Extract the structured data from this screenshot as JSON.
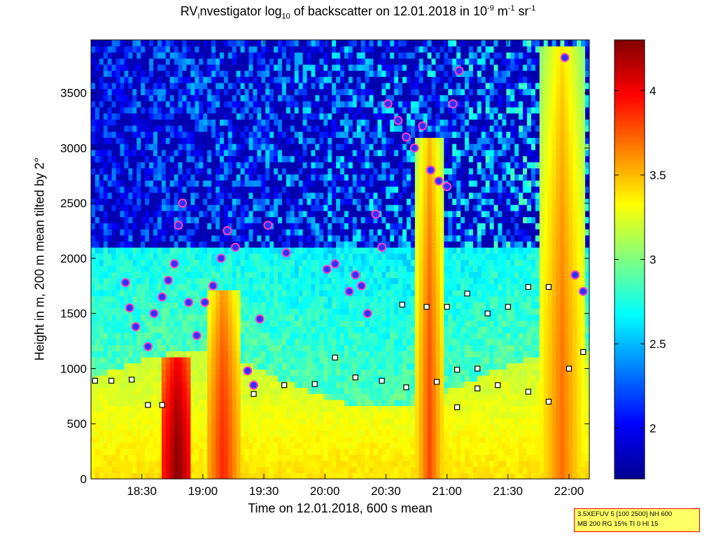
{
  "chart_data": {
    "type": "heatmap",
    "title": {
      "pre": "RV",
      "sub1": "I",
      "mid": "nvestigator log",
      "sub2": "10",
      "mid2": " of backscatter on 12.01.2018 in 10",
      "sup1": "-9",
      "mid3": " m",
      "sup2": "-1",
      "mid4": " sr",
      "sup3": "-1"
    },
    "xlabel": "Time on 12.01.2018, 600 s mean",
    "ylabel": "Height in m, 200 m mean tilted by 2°",
    "x_unit": "time",
    "xlim": [
      "18:05",
      "22:10"
    ],
    "ylim": [
      0,
      3980
    ],
    "x_ticks": [
      "18:30",
      "19:00",
      "19:30",
      "20:00",
      "20:30",
      "21:00",
      "21:30",
      "22:00"
    ],
    "y_ticks": [
      0,
      500,
      1000,
      1500,
      2000,
      2500,
      3000,
      3500
    ],
    "colorbar": {
      "colormap": "jet",
      "clim": [
        1.7,
        4.3
      ],
      "ticks": [
        2,
        2.5,
        3,
        3.5,
        4
      ]
    },
    "field_description_points": {
      "surface_layer_top_m": 900,
      "high_value_columns": [
        {
          "from": "18:40",
          "to": "18:55",
          "top_m": 1100,
          "value": 4.3
        },
        {
          "from": "19:02",
          "to": "19:18",
          "top_m": 1700,
          "value": 3.9
        },
        {
          "from": "20:45",
          "to": "20:58",
          "top_m": 3100,
          "value": 3.8
        },
        {
          "from": "21:45",
          "to": "22:08",
          "top_m": 3900,
          "value": 3.7
        }
      ]
    },
    "cloud_base_points": [
      {
        "t": "18:22",
        "h": 1780
      },
      {
        "t": "18:24",
        "h": 1550
      },
      {
        "t": "18:27",
        "h": 1380
      },
      {
        "t": "18:33",
        "h": 1200
      },
      {
        "t": "18:36",
        "h": 1500
      },
      {
        "t": "18:40",
        "h": 1650
      },
      {
        "t": "18:43",
        "h": 1800
      },
      {
        "t": "18:46",
        "h": 1950
      },
      {
        "t": "18:48",
        "h": 2300
      },
      {
        "t": "18:50",
        "h": 2500
      },
      {
        "t": "18:53",
        "h": 1600
      },
      {
        "t": "18:57",
        "h": 1300
      },
      {
        "t": "19:01",
        "h": 1600
      },
      {
        "t": "19:05",
        "h": 1750
      },
      {
        "t": "19:09",
        "h": 2000
      },
      {
        "t": "19:12",
        "h": 2250
      },
      {
        "t": "19:16",
        "h": 2100
      },
      {
        "t": "19:22",
        "h": 980
      },
      {
        "t": "19:25",
        "h": 850
      },
      {
        "t": "19:28",
        "h": 1450
      },
      {
        "t": "19:32",
        "h": 2300
      },
      {
        "t": "19:41",
        "h": 2050
      },
      {
        "t": "20:01",
        "h": 1900
      },
      {
        "t": "20:05",
        "h": 1950
      },
      {
        "t": "20:12",
        "h": 1700
      },
      {
        "t": "20:15",
        "h": 1850
      },
      {
        "t": "20:18",
        "h": 1750
      },
      {
        "t": "20:21",
        "h": 1500
      },
      {
        "t": "20:25",
        "h": 2400
      },
      {
        "t": "20:28",
        "h": 2100
      },
      {
        "t": "20:31",
        "h": 3400
      },
      {
        "t": "20:36",
        "h": 3250
      },
      {
        "t": "20:40",
        "h": 3100
      },
      {
        "t": "20:44",
        "h": 3000
      },
      {
        "t": "20:48",
        "h": 3200
      },
      {
        "t": "20:52",
        "h": 2800
      },
      {
        "t": "20:56",
        "h": 2700
      },
      {
        "t": "21:00",
        "h": 2650
      },
      {
        "t": "21:03",
        "h": 3400
      },
      {
        "t": "21:06",
        "h": 3700
      },
      {
        "t": "21:58",
        "h": 3820
      },
      {
        "t": "22:03",
        "h": 1850
      },
      {
        "t": "22:07",
        "h": 1700
      }
    ],
    "boundary_layer_points": [
      {
        "t": "18:07",
        "h": 890
      },
      {
        "t": "18:15",
        "h": 890
      },
      {
        "t": "18:25",
        "h": 900
      },
      {
        "t": "18:33",
        "h": 670
      },
      {
        "t": "18:40",
        "h": 670
      },
      {
        "t": "19:25",
        "h": 770
      },
      {
        "t": "19:40",
        "h": 850
      },
      {
        "t": "19:55",
        "h": 860
      },
      {
        "t": "20:05",
        "h": 1100
      },
      {
        "t": "20:15",
        "h": 920
      },
      {
        "t": "20:28",
        "h": 890
      },
      {
        "t": "20:40",
        "h": 830
      },
      {
        "t": "20:55",
        "h": 880
      },
      {
        "t": "21:05",
        "h": 990
      },
      {
        "t": "21:15",
        "h": 1000
      },
      {
        "t": "21:25",
        "h": 850
      },
      {
        "t": "21:40",
        "h": 790
      },
      {
        "t": "21:50",
        "h": 700
      },
      {
        "t": "22:00",
        "h": 1000
      },
      {
        "t": "22:07",
        "h": 1150
      },
      {
        "t": "20:38",
        "h": 1580
      },
      {
        "t": "20:50",
        "h": 1560
      },
      {
        "t": "21:00",
        "h": 1560
      },
      {
        "t": "21:10",
        "h": 1680
      },
      {
        "t": "21:20",
        "h": 1500
      },
      {
        "t": "21:30",
        "h": 1560
      },
      {
        "t": "21:40",
        "h": 1740
      },
      {
        "t": "21:50",
        "h": 1740
      },
      {
        "t": "21:05",
        "h": 650
      },
      {
        "t": "21:15",
        "h": 820
      }
    ],
    "grid": false,
    "legend": "none"
  },
  "info_box": {
    "line1": "3.5XEFUV 5 [100 2500] NH 600",
    "line2": "MB 200 RG 15% TI 0 HI 15"
  }
}
